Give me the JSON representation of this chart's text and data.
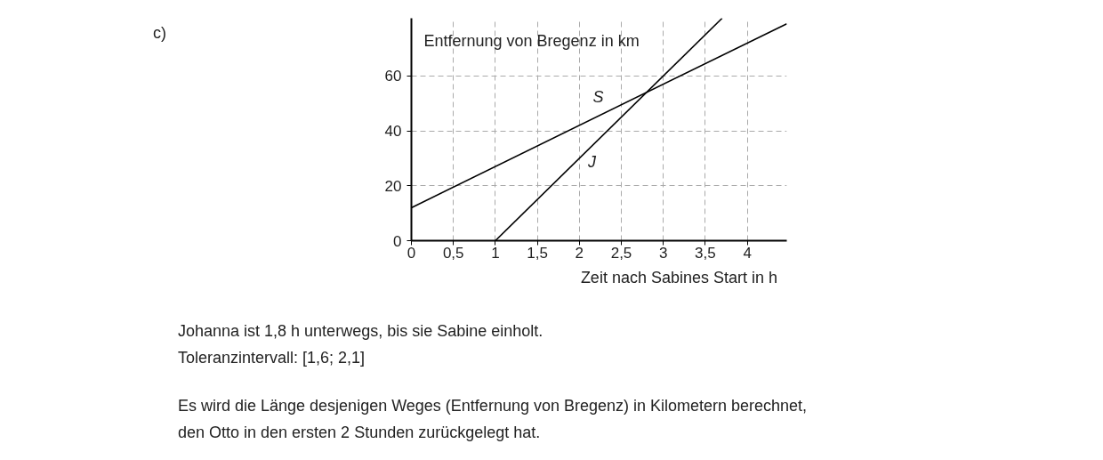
{
  "chart_data": {
    "type": "line",
    "xlabel": "Zeit nach Sabines Start in h",
    "ylabel": "Entfernung von Bregenz in km",
    "series": [
      {
        "color": "#000000",
        "x": [
          0,
          4.47
        ],
        "values": [
          12,
          79
        ]
      },
      {
        "color": "#000000",
        "x": [
          1,
          3.7
        ],
        "values": [
          0,
          81
        ]
      }
    ],
    "xlim": [
      0,
      4.47
    ],
    "ylim": [
      0,
      81
    ],
    "xticks": [
      0,
      {
        "value": 0.5,
        "label": "0,5"
      },
      1,
      {
        "value": 1.5,
        "label": "1,5"
      },
      2,
      {
        "value": 2.5,
        "label": "2,5"
      },
      3,
      {
        "value": 3.5,
        "label": "3,5"
      },
      4
    ],
    "yticks": [
      0,
      20,
      40,
      60
    ],
    "grid": true,
    "line_style": "solid",
    "marker": "none",
    "annotations": [
      "S",
      "J",
      "c)",
      "Johanna ist 1,8 h unterwegs, bis sie Sabine einholt.",
      "Toleranzintervall: [1,6; 2,1]",
      "Es wird die Länge desjenigen Weges (Entfernung von Bregenz) in Kilometern berechnet,",
      "den Otto in den ersten 2 Stunden zurückgelegt hat."
    ]
  }
}
